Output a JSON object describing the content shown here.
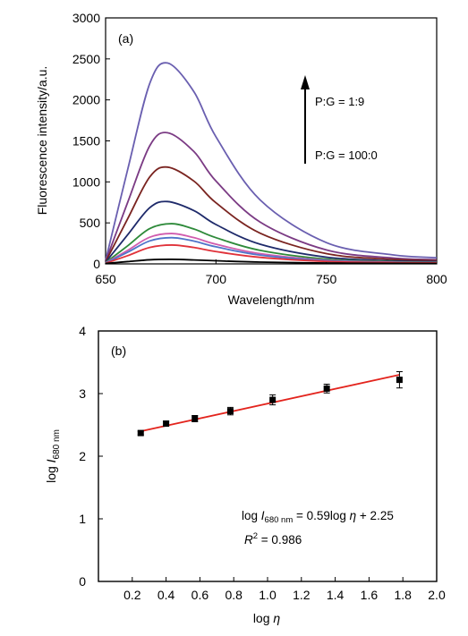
{
  "chart_data": [
    {
      "type": "line",
      "panel_label": "(a)",
      "xlabel": "Wavelength/nm",
      "ylabel": "Fluorescence intensity/a.u.",
      "xlim": [
        650,
        800
      ],
      "ylim": [
        0,
        3000
      ],
      "xticks": [
        650,
        700,
        750,
        800
      ],
      "yticks": [
        0,
        500,
        1000,
        1500,
        2000,
        2500,
        3000
      ],
      "grid": false,
      "legend": "none",
      "annotations": {
        "arrow_top_label": "P:G = 1:9",
        "arrow_bottom_label": "P:G = 100:0",
        "arrow_direction": "up"
      },
      "series": [
        {
          "color": "#6a5fb0",
          "peak_x": 678,
          "peak_y": 2450,
          "start_y": 40,
          "end_y": 75,
          "points_x": [
            650,
            660,
            670,
            678,
            690,
            700,
            720,
            750,
            780,
            800
          ],
          "points_y": [
            40,
            1150,
            2200,
            2450,
            2100,
            1550,
            780,
            260,
            110,
            75
          ]
        },
        {
          "color": "#7b3b84",
          "peak_x": 678,
          "peak_y": 1600,
          "start_y": 30,
          "end_y": 50,
          "points_x": [
            650,
            660,
            670,
            678,
            690,
            700,
            720,
            750,
            780,
            800
          ],
          "points_y": [
            30,
            750,
            1440,
            1600,
            1370,
            1010,
            510,
            170,
            72,
            50
          ]
        },
        {
          "color": "#7a2420",
          "peak_x": 678,
          "peak_y": 1180,
          "start_y": 25,
          "end_y": 40,
          "points_x": [
            650,
            660,
            670,
            678,
            690,
            700,
            720,
            750,
            780,
            800
          ],
          "points_y": [
            25,
            550,
            1060,
            1180,
            1010,
            745,
            375,
            125,
            55,
            40
          ]
        },
        {
          "color": "#1e2a6a",
          "peak_x": 678,
          "peak_y": 760,
          "start_y": 20,
          "end_y": 28,
          "points_x": [
            650,
            660,
            670,
            678,
            690,
            700,
            720,
            750,
            780,
            800
          ],
          "points_y": [
            20,
            355,
            685,
            760,
            650,
            480,
            240,
            82,
            37,
            28
          ]
        },
        {
          "color": "#2e8a3a",
          "peak_x": 680,
          "peak_y": 490,
          "start_y": 15,
          "end_y": 20,
          "points_x": [
            650,
            660,
            670,
            680,
            690,
            700,
            720,
            750,
            780,
            800
          ],
          "points_y": [
            15,
            220,
            430,
            490,
            425,
            320,
            165,
            58,
            27,
            20
          ]
        },
        {
          "color": "#d05cae",
          "peak_x": 680,
          "peak_y": 370,
          "start_y": 12,
          "end_y": 16,
          "points_x": [
            650,
            660,
            670,
            680,
            690,
            700,
            720,
            750,
            780,
            800
          ],
          "points_y": [
            12,
            165,
            325,
            370,
            320,
            240,
            125,
            45,
            21,
            16
          ]
        },
        {
          "color": "#4f74c9",
          "peak_x": 680,
          "peak_y": 320,
          "start_y": 10,
          "end_y": 14,
          "points_x": [
            650,
            660,
            670,
            680,
            690,
            700,
            720,
            750,
            780,
            800
          ],
          "points_y": [
            10,
            142,
            280,
            320,
            278,
            208,
            108,
            39,
            18,
            14
          ]
        },
        {
          "color": "#e0323a",
          "peak_x": 680,
          "peak_y": 230,
          "start_y": 8,
          "end_y": 12,
          "points_x": [
            650,
            660,
            670,
            680,
            690,
            700,
            720,
            750,
            780,
            800
          ],
          "points_y": [
            8,
            100,
            200,
            230,
            200,
            150,
            80,
            30,
            15,
            12
          ]
        },
        {
          "color": "#000000",
          "peak_x": 680,
          "peak_y": 55,
          "start_y": 5,
          "end_y": 5,
          "points_x": [
            650,
            660,
            670,
            680,
            690,
            700,
            720,
            750,
            780,
            800
          ],
          "points_y": [
            5,
            28,
            50,
            55,
            48,
            38,
            22,
            10,
            6,
            5
          ]
        }
      ]
    },
    {
      "type": "scatter",
      "panel_label": "(b)",
      "xlabel": "log η",
      "ylabel": "log I680 nm",
      "xlim": [
        0.0,
        2.0
      ],
      "ylim": [
        0,
        4
      ],
      "xticks": [
        "0.2",
        "0.4",
        "0.6",
        "0.8",
        "1.0",
        "1.2",
        "1.4",
        "1.6",
        "1.8",
        "2.0"
      ],
      "yticks": [
        "0",
        "1",
        "2",
        "3",
        "4"
      ],
      "grid": false,
      "legend": "none",
      "points": {
        "x": [
          0.25,
          0.4,
          0.57,
          0.78,
          1.03,
          1.35,
          1.78
        ],
        "y": [
          2.37,
          2.52,
          2.6,
          2.72,
          2.9,
          3.08,
          3.22
        ],
        "yerr": [
          0.03,
          0.04,
          0.05,
          0.06,
          0.08,
          0.07,
          0.13
        ]
      },
      "fit_line": {
        "slope": 0.59,
        "intercept": 2.25,
        "x_range": [
          0.25,
          1.78
        ],
        "color": "#e3241d"
      },
      "equation": {
        "lhs_prefix": "log ",
        "lhs_var": "I",
        "lhs_sub": "680 nm",
        "rhs": " = 0.59log ",
        "rhs_var": "η",
        "rhs_const": " + 2.25"
      },
      "r_squared": {
        "lhs_var": "R",
        "sup": "2",
        "value": " = 0.986"
      },
      "ylabel_parts": {
        "prefix": "log ",
        "var": "I",
        "sub": "680 nm"
      },
      "xlabel_parts": {
        "prefix": "log ",
        "var": "η"
      }
    }
  ]
}
